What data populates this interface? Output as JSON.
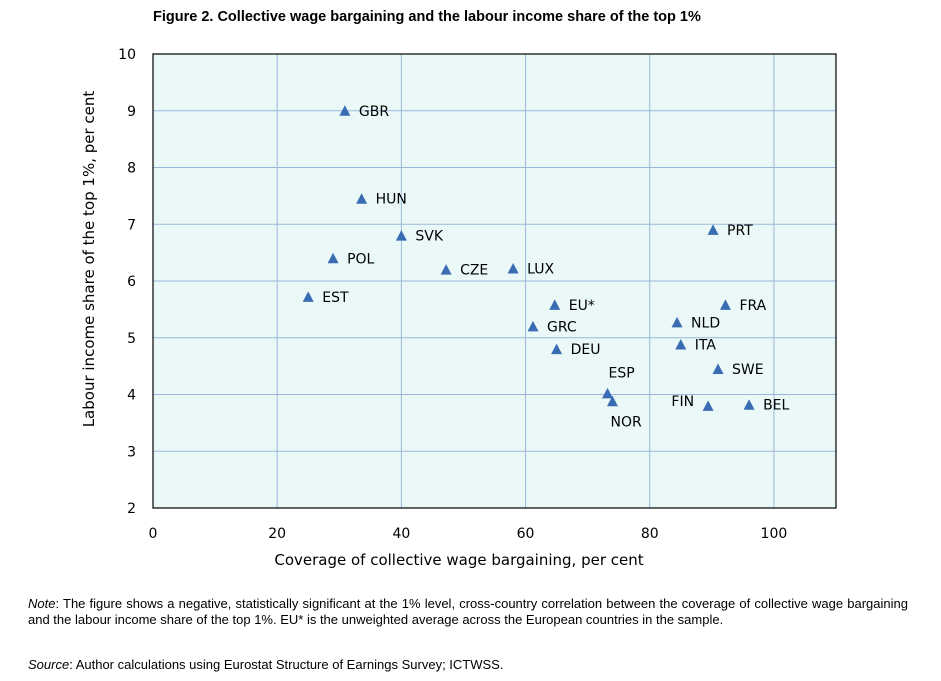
{
  "figure": {
    "title": "Figure 2. Collective wage bargaining and the labour income share of the top 1%",
    "note_label": "Note",
    "note_text": ": The figure shows a negative, statistically significant at the 1% level, cross-country correlation between the coverage of collective wage bargaining and the labour income share of the top 1%. EU* is the unweighted average across the European countries in the sample.",
    "source_label": "Source",
    "source_text": ": Author calculations using Eurostat Structure of Earnings Survey; ICTWSS."
  },
  "colors": {
    "plot_bg": "#eaf8f8",
    "marker": "#3a6cb4",
    "grid": "#9bb8dc"
  },
  "chart_data": {
    "type": "scatter",
    "title": "Figure 2. Collective wage bargaining and the labour income share of the top 1%",
    "xlabel": "Coverage of collective wage bargaining, per cent",
    "ylabel": "Labour income share of the top 1%, per cent",
    "xlim": [
      0,
      110
    ],
    "ylim": [
      2,
      10
    ],
    "xticks": [
      0,
      20,
      40,
      60,
      80,
      100
    ],
    "yticks": [
      2,
      3,
      4,
      5,
      6,
      7,
      8,
      9,
      10
    ],
    "grid": true,
    "marker": "triangle",
    "points": [
      {
        "label": "GBR",
        "x": 30.9,
        "y": 9.0,
        "label_pos": "right"
      },
      {
        "label": "HUN",
        "x": 33.6,
        "y": 7.45,
        "label_pos": "right"
      },
      {
        "label": "SVK",
        "x": 40.0,
        "y": 6.8,
        "label_pos": "right"
      },
      {
        "label": "POL",
        "x": 29.0,
        "y": 6.4,
        "label_pos": "right"
      },
      {
        "label": "CZE",
        "x": 47.2,
        "y": 6.2,
        "label_pos": "right"
      },
      {
        "label": "LUX",
        "x": 58.0,
        "y": 6.22,
        "label_pos": "right"
      },
      {
        "label": "EST",
        "x": 25.0,
        "y": 5.72,
        "label_pos": "right"
      },
      {
        "label": "EU*",
        "x": 64.7,
        "y": 5.58,
        "label_pos": "right"
      },
      {
        "label": "GRC",
        "x": 61.2,
        "y": 5.2,
        "label_pos": "right"
      },
      {
        "label": "DEU",
        "x": 65.0,
        "y": 4.8,
        "label_pos": "right"
      },
      {
        "label": "ESP",
        "x": 73.2,
        "y": 4.02,
        "label_pos": "above"
      },
      {
        "label": "NOR",
        "x": 74.0,
        "y": 3.88,
        "label_pos": "below"
      },
      {
        "label": "PRT",
        "x": 90.2,
        "y": 6.9,
        "label_pos": "right"
      },
      {
        "label": "FRA",
        "x": 92.2,
        "y": 5.58,
        "label_pos": "right"
      },
      {
        "label": "NLD",
        "x": 84.4,
        "y": 5.27,
        "label_pos": "right"
      },
      {
        "label": "ITA",
        "x": 85.0,
        "y": 4.88,
        "label_pos": "right"
      },
      {
        "label": "SWE",
        "x": 91.0,
        "y": 4.45,
        "label_pos": "right"
      },
      {
        "label": "FIN",
        "x": 89.4,
        "y": 3.8,
        "label_pos": "left"
      },
      {
        "label": "BEL",
        "x": 96.0,
        "y": 3.82,
        "label_pos": "right"
      }
    ]
  }
}
